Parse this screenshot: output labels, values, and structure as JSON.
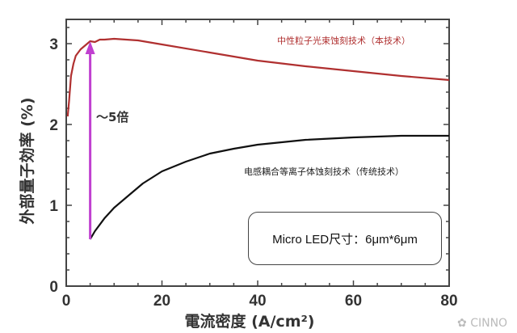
{
  "chart_data": {
    "type": "line",
    "xlabel": "電流密度 (A/cm²)",
    "ylabel": "外部量子効率 (%)",
    "xlim": [
      0,
      80
    ],
    "ylim": [
      0,
      3.3
    ],
    "xticks": [
      "0",
      "20",
      "40",
      "60",
      "80"
    ],
    "yticks": [
      "0",
      "1",
      "2",
      "3"
    ],
    "grid": false,
    "series": [
      {
        "name": "中性粒子光束蚀刻技术（本技术）",
        "color": "#b03030",
        "x": [
          0.3,
          0.6,
          1,
          1.5,
          2,
          3,
          4,
          5,
          6,
          7,
          8,
          10,
          15,
          20,
          30,
          40,
          50,
          60,
          70,
          80
        ],
        "y": [
          2.1,
          2.3,
          2.6,
          2.75,
          2.85,
          2.93,
          2.98,
          3.03,
          3.02,
          3.05,
          3.05,
          3.06,
          3.04,
          2.99,
          2.89,
          2.79,
          2.72,
          2.66,
          2.6,
          2.55
        ]
      },
      {
        "name": "电感耦合等离子体蚀刻技术（传统技术）",
        "color": "#111111",
        "x": [
          5,
          6,
          8,
          10,
          13,
          16,
          20,
          25,
          30,
          35,
          40,
          50,
          60,
          70,
          80
        ],
        "y": [
          0.58,
          0.68,
          0.84,
          0.97,
          1.12,
          1.27,
          1.42,
          1.54,
          1.64,
          1.7,
          1.75,
          1.81,
          1.84,
          1.86,
          1.86
        ]
      }
    ],
    "annotations": {
      "arrow_label": "～5倍",
      "arrow_color": "#c040d0",
      "arrow_from": [
        5,
        0.58
      ],
      "arrow_to": [
        5,
        3.03
      ],
      "box_text": "Micro LED尺寸：6μm*6μm"
    }
  },
  "watermark": "CINNO"
}
